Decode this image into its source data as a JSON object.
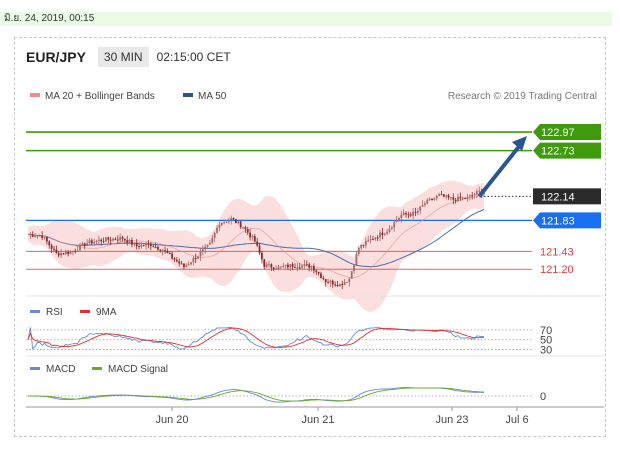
{
  "date_bar": "มิ.ย. 24, 2019, 00:15",
  "header": {
    "pair": "EUR/JPY",
    "timeframe": "30 MIN",
    "time": "02:15:00 CET"
  },
  "legend": {
    "ma20": "MA 20 + Bollinger Bands",
    "ma50": "MA 50"
  },
  "copyright": "Research © 2019 Trading Central",
  "colors": {
    "green": "#3f9a0e",
    "blue": "#1a6ef0",
    "red": "#e23a3a",
    "dark": "#2b2b2b",
    "candle_up": "#a36a6a",
    "candle_down": "#8b2a2a",
    "band": "#f9d3d3",
    "ma50": "#4a6fa8",
    "rsi": "#6b87d6",
    "rsi_ma": "#e03030",
    "macd": "#6b87d6",
    "macd_signal": "#6aa832"
  },
  "chart_data": [
    {
      "type": "line",
      "name": "price",
      "ylim": [
        120.88,
        123.28
      ],
      "x_ticks": [
        "Jun 20",
        "Jun 21",
        "Jun 23",
        "Jul 6"
      ],
      "levels": [
        {
          "value": 122.97,
          "label": "122.97",
          "kind": "resistance",
          "color": "green"
        },
        {
          "value": 122.73,
          "label": "122.73",
          "kind": "resistance",
          "color": "green"
        },
        {
          "value": 122.14,
          "label": "122.14",
          "kind": "current",
          "color": "dark"
        },
        {
          "value": 121.83,
          "label": "121.83",
          "kind": "pivot",
          "color": "blue"
        },
        {
          "value": 121.43,
          "label": "121.43",
          "kind": "support",
          "color": "red"
        },
        {
          "value": 121.2,
          "label": "121.20",
          "kind": "support",
          "color": "red"
        }
      ],
      "close_anchors": [
        [
          0,
          121.65
        ],
        [
          6,
          121.63
        ],
        [
          12,
          121.4
        ],
        [
          18,
          121.42
        ],
        [
          25,
          121.54
        ],
        [
          32,
          121.58
        ],
        [
          40,
          121.6
        ],
        [
          46,
          121.5
        ],
        [
          52,
          121.52
        ],
        [
          57,
          121.45
        ],
        [
          61,
          121.35
        ],
        [
          66,
          121.23
        ],
        [
          72,
          121.38
        ],
        [
          77,
          121.52
        ],
        [
          81,
          121.8
        ],
        [
          86,
          121.85
        ],
        [
          91,
          121.75
        ],
        [
          96,
          121.56
        ],
        [
          100,
          121.25
        ],
        [
          106,
          121.22
        ],
        [
          112,
          121.25
        ],
        [
          120,
          121.24
        ],
        [
          126,
          121.05
        ],
        [
          132,
          121.0
        ],
        [
          136,
          121.08
        ],
        [
          140,
          121.48
        ],
        [
          146,
          121.6
        ],
        [
          152,
          121.7
        ],
        [
          158,
          121.9
        ],
        [
          164,
          121.92
        ],
        [
          168,
          122.05
        ],
        [
          174,
          122.15
        ],
        [
          180,
          122.1
        ],
        [
          186,
          122.12
        ],
        [
          191,
          122.2
        ]
      ],
      "projection": {
        "from_index": 191,
        "from_value": 122.14,
        "to_value": 122.97
      }
    },
    {
      "type": "line",
      "name": "RSI",
      "levels": [
        70,
        50,
        30
      ],
      "series": [
        "RSI",
        "9MA"
      ]
    },
    {
      "type": "line",
      "name": "MACD",
      "levels": [
        0
      ],
      "series": [
        "MACD",
        "MACD Signal"
      ]
    }
  ]
}
